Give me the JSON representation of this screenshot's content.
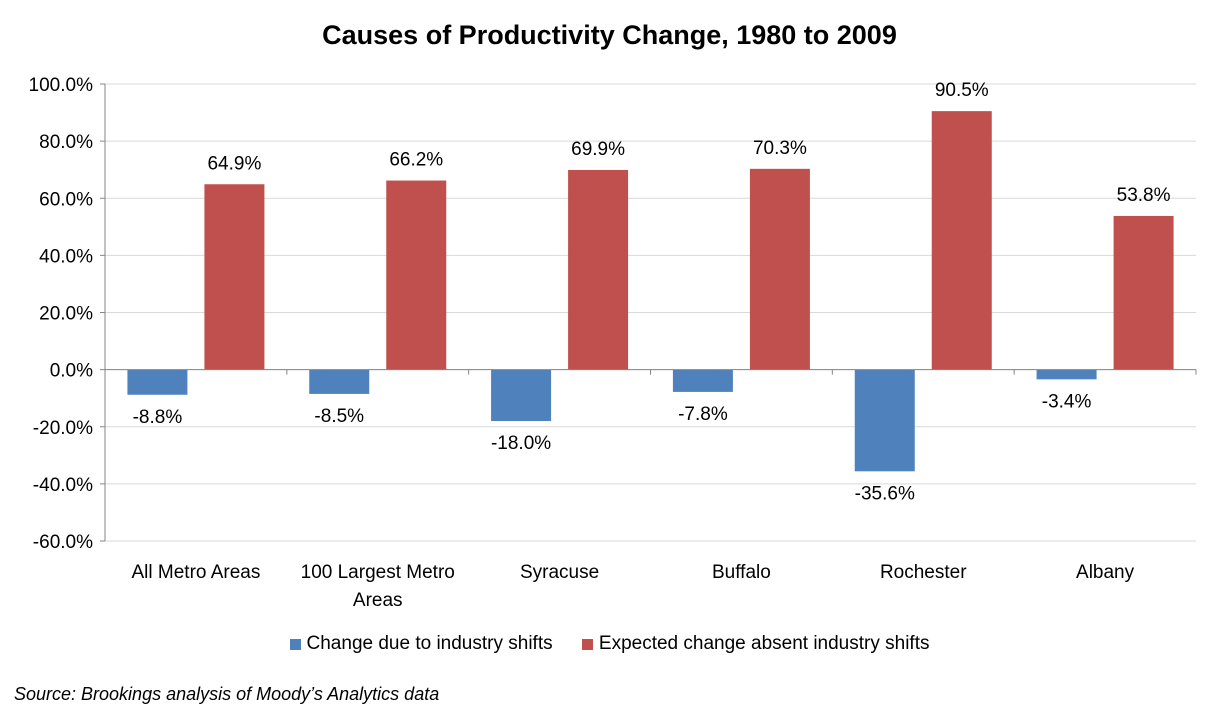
{
  "chart_data": {
    "type": "bar",
    "title": "Causes of Productivity Change, 1980 to 2009",
    "categories": [
      [
        "All Metro Areas"
      ],
      [
        "100 Largest Metro",
        "Areas"
      ],
      [
        "Syracuse"
      ],
      [
        "Buffalo"
      ],
      [
        "Rochester"
      ],
      [
        "Albany"
      ]
    ],
    "series": [
      {
        "name": "Change due to industry shifts",
        "color": "#4F81BD",
        "values": [
          -8.8,
          -8.5,
          -18.0,
          -7.8,
          -35.6,
          -3.4
        ],
        "labels": [
          "-8.8%",
          "-8.5%",
          "-18.0%",
          "-7.8%",
          "-35.6%",
          "-3.4%"
        ]
      },
      {
        "name": "Expected change absent industry shifts",
        "color": "#C0504D",
        "values": [
          64.9,
          66.2,
          69.9,
          70.3,
          90.5,
          53.8
        ],
        "labels": [
          "64.9%",
          "66.2%",
          "69.9%",
          "70.3%",
          "90.5%",
          "53.8%"
        ]
      }
    ],
    "ylim": [
      -60,
      100
    ],
    "yticks": [
      100,
      80,
      60,
      40,
      20,
      0,
      -20,
      -40,
      -60
    ],
    "ytick_labels": [
      "100.0%",
      "80.0%",
      "60.0%",
      "40.0%",
      "20.0%",
      "0.0%",
      "-20.0%",
      "-40.0%",
      "-60.0%"
    ],
    "grid": true,
    "legend_position": "bottom"
  },
  "source": "Source: Brookings analysis of Moody’s Analytics data"
}
